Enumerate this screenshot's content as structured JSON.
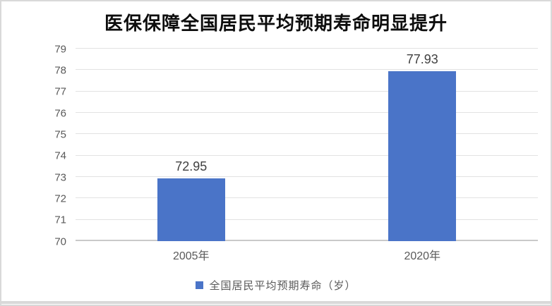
{
  "title": "医保保障全国居民平均预期寿命明显提升",
  "chart_data": {
    "type": "bar",
    "title": "医保保障全国居民平均预期寿命明显提升",
    "categories": [
      "2005年",
      "2020年"
    ],
    "series": [
      {
        "name": "全国居民平均预期寿命（岁）",
        "values": [
          72.95,
          77.93
        ]
      }
    ],
    "data_labels": [
      "72.95",
      "77.93"
    ],
    "xlabel": "",
    "ylabel": "",
    "ylim": [
      70,
      79
    ],
    "y_ticks": [
      70,
      71,
      72,
      73,
      74,
      75,
      76,
      77,
      78,
      79
    ],
    "grid": true,
    "legend_position": "bottom"
  },
  "legend": {
    "label": "全国居民平均预期寿命（岁）"
  },
  "colors": {
    "bar": "#4a74c8",
    "gridline": "#e2e2e2",
    "axis_line": "#c9c9c9",
    "tick_text": "#595959",
    "value_text": "#404040",
    "title_text": "#0d0d0d"
  }
}
